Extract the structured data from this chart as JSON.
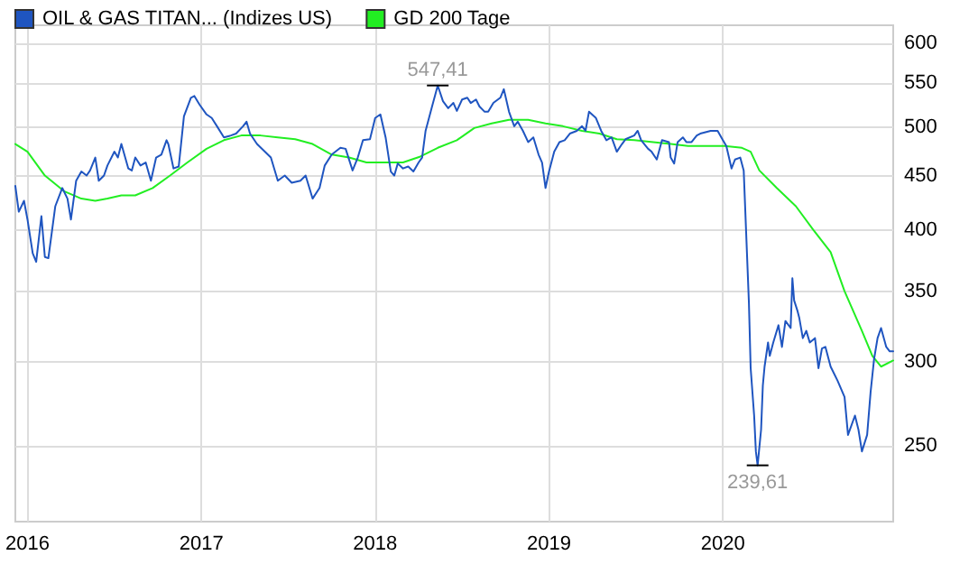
{
  "chart_data": {
    "type": "line",
    "legend": "top left",
    "grid": true,
    "marker": "none",
    "line_style": "solid",
    "log": "y",
    "xlim": [
      2015.93,
      2020.98
    ],
    "xticks": [
      2016,
      2017,
      2018,
      2019,
      2020
    ],
    "ylim": [
      212,
      624
    ],
    "yticks": [
      250,
      300,
      350,
      400,
      450,
      500,
      550,
      600
    ],
    "annotations": [
      {
        "text": "547,41",
        "x": 2018.36,
        "y": 547.41
      },
      {
        "text": "239,61",
        "x": 2020.2,
        "y": 239.61
      }
    ],
    "series": [
      {
        "name": "OIL & GAS TITAN... (Indizes US)",
        "color": "#1f55c0",
        "x": [
          2015.93,
          2015.95,
          2015.98,
          2016.0,
          2016.03,
          2016.05,
          2016.08,
          2016.1,
          2016.12,
          2016.16,
          2016.2,
          2016.23,
          2016.25,
          2016.28,
          2016.31,
          2016.34,
          2016.36,
          2016.39,
          2016.41,
          2016.44,
          2016.46,
          2016.5,
          2016.52,
          2016.54,
          2016.58,
          2016.6,
          2016.62,
          2016.65,
          2016.68,
          2016.71,
          2016.74,
          2016.77,
          2016.8,
          2016.81,
          2016.84,
          2016.87,
          2016.9,
          2016.94,
          2016.96,
          2016.99,
          2017.03,
          2017.06,
          2017.09,
          2017.13,
          2017.17,
          2017.2,
          2017.24,
          2017.26,
          2017.28,
          2017.32,
          2017.4,
          2017.44,
          2017.48,
          2017.52,
          2017.57,
          2017.6,
          2017.64,
          2017.68,
          2017.71,
          2017.75,
          2017.8,
          2017.83,
          2017.87,
          2017.9,
          2017.93,
          2017.97,
          2018.0,
          2018.03,
          2018.06,
          2018.09,
          2018.11,
          2018.13,
          2018.16,
          2018.19,
          2018.22,
          2018.25,
          2018.27,
          2018.29,
          2018.33,
          2018.36,
          2018.39,
          2018.42,
          2018.45,
          2018.47,
          2018.5,
          2018.53,
          2018.55,
          2018.58,
          2018.6,
          2018.63,
          2018.65,
          2018.68,
          2018.72,
          2018.74,
          2018.77,
          2018.8,
          2018.82,
          2018.85,
          2018.88,
          2018.91,
          2018.94,
          2018.96,
          2018.98,
          2019.0,
          2019.03,
          2019.06,
          2019.09,
          2019.12,
          2019.16,
          2019.19,
          2019.21,
          2019.23,
          2019.27,
          2019.3,
          2019.33,
          2019.36,
          2019.39,
          2019.42,
          2019.44,
          2019.49,
          2019.51,
          2019.53,
          2019.57,
          2019.59,
          2019.62,
          2019.65,
          2019.69,
          2019.7,
          2019.72,
          2019.74,
          2019.77,
          2019.79,
          2019.82,
          2019.85,
          2019.87,
          2019.93,
          2019.97,
          2020.0,
          2020.02,
          2020.05,
          2020.07,
          2020.1,
          2020.12,
          2020.15,
          2020.16,
          2020.18,
          2020.19,
          2020.2,
          2020.22,
          2020.23,
          2020.24,
          2020.26,
          2020.27,
          2020.29,
          2020.32,
          2020.34,
          2020.36,
          2020.39,
          2020.4,
          2020.41,
          2020.43,
          2020.44,
          2020.46,
          2020.48,
          2020.5,
          2020.53,
          2020.55,
          2020.57,
          2020.59,
          2020.62,
          2020.66,
          2020.7,
          2020.72,
          2020.76,
          2020.78,
          2020.8,
          2020.83,
          2020.85,
          2020.87,
          2020.89,
          2020.91,
          2020.94,
          2020.96,
          2020.98
        ],
        "values": [
          440,
          416,
          426,
          409,
          380,
          373,
          412,
          377,
          376,
          421,
          438,
          428,
          409,
          445,
          454,
          450,
          455,
          468,
          445,
          450,
          460,
          474,
          468,
          482,
          457,
          455,
          468,
          460,
          463,
          445,
          468,
          471,
          486,
          482,
          457,
          459,
          512,
          533,
          535,
          525,
          514,
          510,
          501,
          489,
          491,
          493,
          501,
          506,
          493,
          482,
          468,
          445,
          450,
          443,
          445,
          450,
          428,
          438,
          460,
          471,
          478,
          477,
          455,
          468,
          486,
          487,
          510,
          514,
          489,
          454,
          450,
          462,
          457,
          459,
          454,
          463,
          468,
          496,
          525,
          547.41,
          529,
          521,
          527,
          518,
          531,
          533,
          527,
          531,
          523,
          517,
          517,
          527,
          533,
          543,
          517,
          501,
          506,
          496,
          484,
          489,
          471,
          463,
          438,
          454,
          474,
          484,
          486,
          493,
          496,
          501,
          496,
          517,
          510,
          496,
          486,
          489,
          474,
          482,
          487,
          491,
          496,
          486,
          477,
          474,
          466,
          486,
          484,
          468,
          462,
          484,
          489,
          484,
          484,
          491,
          493,
          496,
          496,
          486,
          480,
          457,
          466,
          468,
          455,
          341,
          296,
          267,
          247,
          239.61,
          259,
          285,
          297,
          313,
          304,
          313,
          325,
          310,
          328,
          323,
          360,
          343,
          335,
          330,
          316,
          321,
          313,
          316,
          296,
          309,
          310,
          297,
          288,
          278,
          256,
          267,
          259,
          247,
          256,
          281,
          302,
          316,
          323,
          310,
          307,
          307
        ]
      },
      {
        "name": "GD 200 Tage",
        "color": "#22ee22",
        "x": [
          2015.93,
          2016.0,
          2016.1,
          2016.21,
          2016.31,
          2016.39,
          2016.46,
          2016.54,
          2016.62,
          2016.72,
          2016.82,
          2016.92,
          2017.03,
          2017.13,
          2017.23,
          2017.34,
          2017.44,
          2017.54,
          2017.64,
          2017.75,
          2017.85,
          2017.95,
          2018.06,
          2018.16,
          2018.26,
          2018.36,
          2018.47,
          2018.57,
          2018.67,
          2018.77,
          2018.88,
          2018.98,
          2019.08,
          2019.19,
          2019.29,
          2019.39,
          2019.49,
          2019.6,
          2019.7,
          2019.8,
          2019.91,
          2020.01,
          2020.11,
          2020.16,
          2020.21,
          2020.31,
          2020.42,
          2020.52,
          2020.62,
          2020.7,
          2020.8,
          2020.86,
          2020.91,
          2020.98
        ],
        "values": [
          482,
          474,
          450,
          435,
          428,
          426,
          428,
          431,
          431,
          438,
          450,
          463,
          477,
          486,
          491,
          491,
          489,
          487,
          482,
          471,
          468,
          463,
          463,
          463,
          469,
          478,
          486,
          499,
          504,
          508,
          508,
          504,
          501,
          496,
          493,
          487,
          486,
          484,
          482,
          480,
          480,
          480,
          478,
          474,
          455,
          438,
          421,
          400,
          381,
          350,
          321,
          304,
          297,
          301
        ]
      }
    ]
  }
}
